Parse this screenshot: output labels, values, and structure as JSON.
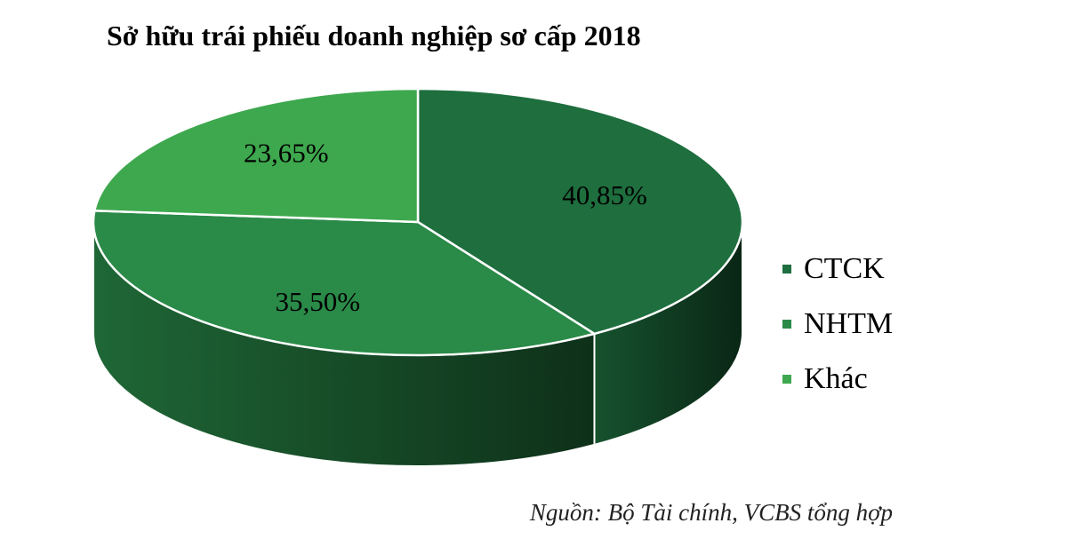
{
  "chart_data": {
    "type": "pie",
    "style": "3d",
    "title": "Sở hữu trái phiếu doanh nghiệp sơ cấp 2018",
    "source": "Nguồn: Bộ Tài chính, VCBS tổng hợp",
    "legend_position": "right",
    "slices": [
      {
        "name": "CTCK",
        "value": 40.85,
        "label": "40,85%",
        "color": "#1e6e3e"
      },
      {
        "name": "NHTM",
        "value": 35.5,
        "label": "35,50%",
        "color": "#2a8a48"
      },
      {
        "name": "Khác",
        "value": 23.65,
        "label": "23,65%",
        "color": "#3ea84e"
      }
    ]
  }
}
